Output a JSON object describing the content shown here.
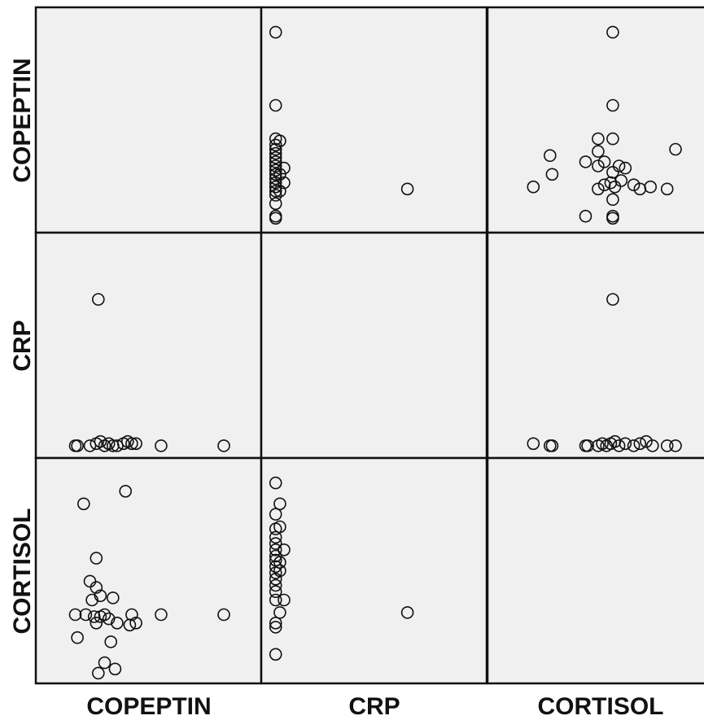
{
  "chart_data": {
    "type": "scatter",
    "layout": "scatterplot-matrix",
    "variables": [
      "COPEPTIN",
      "CRP",
      "CORTISOL"
    ],
    "grid": false,
    "diagonal": "empty",
    "point_style": "open-circle",
    "background_color": "#f0f0f0",
    "panels": [
      {
        "x": "CRP",
        "y": "COPEPTIN",
        "points": [
          [
            0.03,
            0.92
          ],
          [
            0.03,
            0.57
          ],
          [
            0.03,
            0.41
          ],
          [
            0.03,
            0.38
          ],
          [
            0.03,
            0.36
          ],
          [
            0.03,
            0.34
          ],
          [
            0.03,
            0.32
          ],
          [
            0.03,
            0.3
          ],
          [
            0.03,
            0.28
          ],
          [
            0.03,
            0.26
          ],
          [
            0.03,
            0.24
          ],
          [
            0.03,
            0.22
          ],
          [
            0.03,
            0.2
          ],
          [
            0.03,
            0.18
          ],
          [
            0.03,
            0.16
          ],
          [
            0.03,
            0.14
          ],
          [
            0.03,
            0.1
          ],
          [
            0.03,
            0.04
          ],
          [
            0.03,
            0.03
          ],
          [
            0.05,
            0.4
          ],
          [
            0.05,
            0.24
          ],
          [
            0.05,
            0.16
          ],
          [
            0.07,
            0.27
          ],
          [
            0.07,
            0.2
          ],
          [
            0.66,
            0.17
          ]
        ]
      },
      {
        "x": "CORTISOL",
        "y": "COPEPTIN",
        "points": [
          [
            0.56,
            0.92
          ],
          [
            0.56,
            0.57
          ],
          [
            0.49,
            0.41
          ],
          [
            0.56,
            0.41
          ],
          [
            0.49,
            0.35
          ],
          [
            0.52,
            0.3
          ],
          [
            0.43,
            0.3
          ],
          [
            0.49,
            0.28
          ],
          [
            0.59,
            0.28
          ],
          [
            0.56,
            0.25
          ],
          [
            0.62,
            0.27
          ],
          [
            0.26,
            0.33
          ],
          [
            0.27,
            0.24
          ],
          [
            0.18,
            0.18
          ],
          [
            0.49,
            0.17
          ],
          [
            0.52,
            0.19
          ],
          [
            0.55,
            0.2
          ],
          [
            0.57,
            0.18
          ],
          [
            0.6,
            0.21
          ],
          [
            0.66,
            0.19
          ],
          [
            0.69,
            0.17
          ],
          [
            0.74,
            0.18
          ],
          [
            0.82,
            0.17
          ],
          [
            0.56,
            0.12
          ],
          [
            0.43,
            0.04
          ],
          [
            0.56,
            0.04
          ],
          [
            0.56,
            0.03
          ],
          [
            0.86,
            0.36
          ]
        ]
      },
      {
        "x": "COPEPTIN",
        "y": "CRP",
        "points": [
          [
            0.26,
            0.72
          ],
          [
            0.15,
            0.02
          ],
          [
            0.16,
            0.02
          ],
          [
            0.22,
            0.02
          ],
          [
            0.25,
            0.03
          ],
          [
            0.27,
            0.04
          ],
          [
            0.29,
            0.02
          ],
          [
            0.31,
            0.03
          ],
          [
            0.33,
            0.02
          ],
          [
            0.35,
            0.02
          ],
          [
            0.38,
            0.03
          ],
          [
            0.4,
            0.04
          ],
          [
            0.42,
            0.03
          ],
          [
            0.44,
            0.03
          ],
          [
            0.56,
            0.02
          ],
          [
            0.86,
            0.02
          ]
        ]
      },
      {
        "x": "CORTISOL",
        "y": "CRP",
        "points": [
          [
            0.56,
            0.72
          ],
          [
            0.18,
            0.03
          ],
          [
            0.26,
            0.02
          ],
          [
            0.27,
            0.02
          ],
          [
            0.43,
            0.02
          ],
          [
            0.44,
            0.02
          ],
          [
            0.49,
            0.02
          ],
          [
            0.51,
            0.03
          ],
          [
            0.53,
            0.02
          ],
          [
            0.55,
            0.03
          ],
          [
            0.57,
            0.04
          ],
          [
            0.59,
            0.02
          ],
          [
            0.62,
            0.03
          ],
          [
            0.66,
            0.02
          ],
          [
            0.69,
            0.03
          ],
          [
            0.72,
            0.04
          ],
          [
            0.75,
            0.02
          ],
          [
            0.82,
            0.02
          ],
          [
            0.86,
            0.02
          ]
        ]
      },
      {
        "x": "COPEPTIN",
        "y": "CORTISOL",
        "points": [
          [
            0.25,
            0.56
          ],
          [
            0.22,
            0.45
          ],
          [
            0.25,
            0.42
          ],
          [
            0.27,
            0.38
          ],
          [
            0.23,
            0.36
          ],
          [
            0.33,
            0.37
          ],
          [
            0.15,
            0.29
          ],
          [
            0.2,
            0.29
          ],
          [
            0.24,
            0.28
          ],
          [
            0.27,
            0.28
          ],
          [
            0.29,
            0.29
          ],
          [
            0.31,
            0.27
          ],
          [
            0.25,
            0.25
          ],
          [
            0.35,
            0.25
          ],
          [
            0.41,
            0.24
          ],
          [
            0.42,
            0.29
          ],
          [
            0.44,
            0.25
          ],
          [
            0.56,
            0.29
          ],
          [
            0.86,
            0.29
          ],
          [
            0.16,
            0.18
          ],
          [
            0.32,
            0.16
          ],
          [
            0.29,
            0.06
          ],
          [
            0.34,
            0.03
          ],
          [
            0.26,
            0.01
          ],
          [
            0.39,
            0.88
          ],
          [
            0.19,
            0.82
          ]
        ]
      },
      {
        "x": "CRP",
        "y": "CORTISOL",
        "points": [
          [
            0.03,
            0.92
          ],
          [
            0.03,
            0.77
          ],
          [
            0.03,
            0.7
          ],
          [
            0.03,
            0.66
          ],
          [
            0.03,
            0.63
          ],
          [
            0.03,
            0.6
          ],
          [
            0.03,
            0.57
          ],
          [
            0.03,
            0.55
          ],
          [
            0.03,
            0.52
          ],
          [
            0.03,
            0.49
          ],
          [
            0.03,
            0.46
          ],
          [
            0.03,
            0.43
          ],
          [
            0.03,
            0.4
          ],
          [
            0.03,
            0.36
          ],
          [
            0.03,
            0.25
          ],
          [
            0.03,
            0.23
          ],
          [
            0.03,
            0.1
          ],
          [
            0.05,
            0.82
          ],
          [
            0.05,
            0.71
          ],
          [
            0.05,
            0.54
          ],
          [
            0.05,
            0.5
          ],
          [
            0.05,
            0.3
          ],
          [
            0.07,
            0.6
          ],
          [
            0.07,
            0.36
          ],
          [
            0.66,
            0.3
          ]
        ]
      }
    ]
  }
}
